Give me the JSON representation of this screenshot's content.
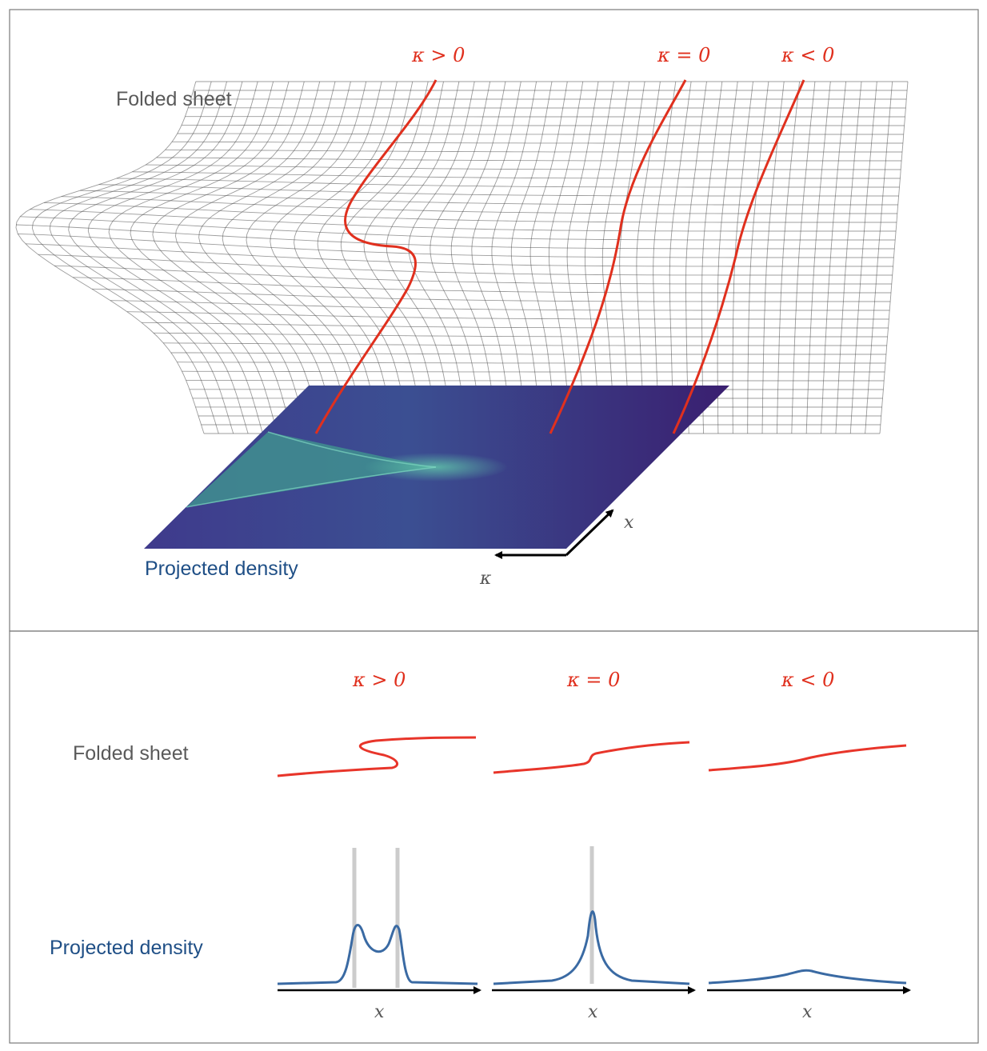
{
  "top_panel": {
    "folded_sheet_label": "Folded sheet",
    "projected_density_label": "Projected density",
    "kappa_labels": [
      "κ > 0",
      "κ = 0",
      "κ < 0"
    ],
    "axis_x_label": "x",
    "axis_kappa_label": "κ"
  },
  "bottom_panel": {
    "folded_sheet_label": "Folded sheet",
    "projected_density_label": "Projected density",
    "column_labels": [
      "κ > 0",
      "κ = 0",
      "κ < 0"
    ],
    "x_axis_label": "x"
  },
  "colors": {
    "curve_red": "#e0301e",
    "density_blue": "#3a6aa3",
    "caustic_grey": "#c8c8c8",
    "plane_dark": "#3b1a6b",
    "plane_glow": "#4fb3a0"
  }
}
